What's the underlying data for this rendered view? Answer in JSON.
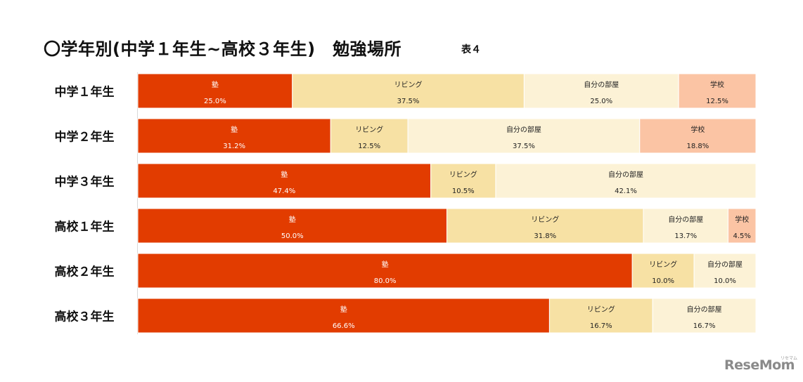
{
  "title": "〇学年別(中学１年生~高校３年生)　勉強場所",
  "table_label": "表４",
  "logo": {
    "text": "ReseMom",
    "small_text": "リセマム"
  },
  "colors": {
    "塾": "#e23c00",
    "リビング": "#f7e1a4",
    "自分の部屋": "#fcf2d6",
    "学校": "#fbc4a4",
    "separator": "#ffffff"
  },
  "chart_data": {
    "type": "bar",
    "orientation": "horizontal",
    "stacked": true,
    "normalized_to": 100,
    "categories": [
      "中学１年生",
      "中学２年生",
      "中学３年生",
      "高校１年生",
      "高校２年生",
      "高校３年生"
    ],
    "series": [
      {
        "name": "塾",
        "values": [
          25.0,
          31.2,
          47.4,
          50.0,
          80.0,
          66.6
        ],
        "labels": [
          "25.0%",
          "31.2%",
          "47.4%",
          "50.0%",
          "80.0%",
          "66.6%"
        ]
      },
      {
        "name": "リビング",
        "values": [
          37.5,
          12.5,
          10.5,
          31.8,
          10.0,
          16.7
        ],
        "labels": [
          "37.5%",
          "12.5%",
          "10.5%",
          "31.8%",
          "10.0%",
          "16.7%"
        ]
      },
      {
        "name": "自分の部屋",
        "values": [
          25.0,
          37.5,
          42.1,
          13.7,
          10.0,
          16.7
        ],
        "labels": [
          "25.0%",
          "37.5%",
          "42.1%",
          "13.7%",
          "10.0%",
          "16.7%"
        ]
      },
      {
        "name": "学校",
        "values": [
          12.5,
          18.8,
          0,
          4.5,
          0,
          0
        ],
        "labels": [
          "12.5%",
          "18.8%",
          "",
          "4.5%",
          "",
          ""
        ]
      }
    ],
    "legend": "none",
    "grid": false
  }
}
